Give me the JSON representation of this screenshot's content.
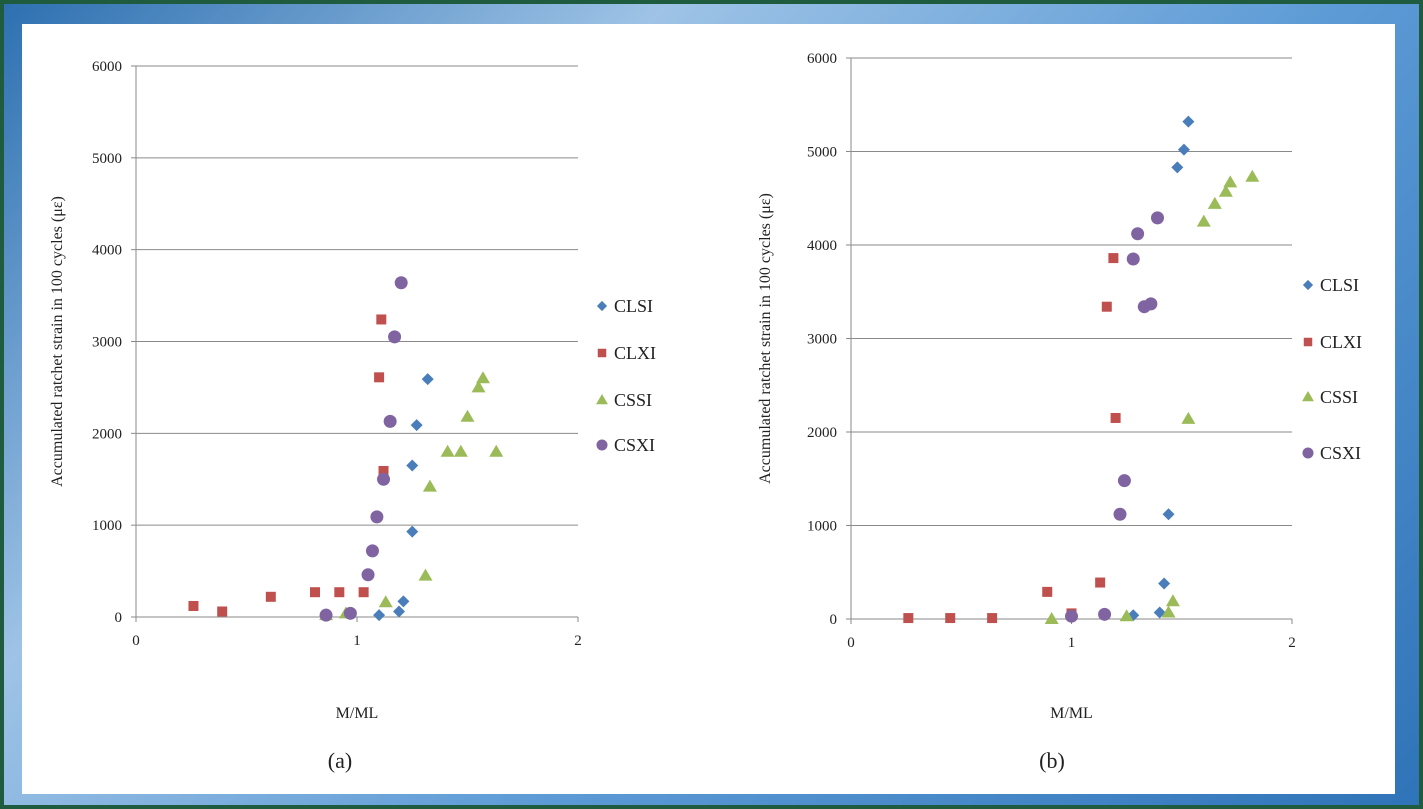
{
  "chart_data": [
    {
      "type": "scatter",
      "panel_label": "(a)",
      "xlabel": "M/ML",
      "ylabel": "Accumulated ratchet strain in 100 cycles (με)",
      "xlim": [
        0,
        2
      ],
      "ylim": [
        0,
        6000
      ],
      "x_ticks": [
        "0",
        "1",
        "2"
      ],
      "y_ticks": [
        "0",
        "1000",
        "2000",
        "3000",
        "4000",
        "5000",
        "6000"
      ],
      "grid": "horizontal",
      "legend_position": "right",
      "series": [
        {
          "name": "CLSI",
          "marker": "diamond",
          "color": "#4a7ebb",
          "points": [
            [
              1.1,
              20
            ],
            [
              1.19,
              60
            ],
            [
              1.21,
              170
            ],
            [
              1.25,
              930
            ],
            [
              1.25,
              1650
            ],
            [
              1.27,
              2090
            ],
            [
              1.32,
              2590
            ]
          ]
        },
        {
          "name": "CLXI",
          "marker": "square",
          "color": "#c0504d",
          "points": [
            [
              0.26,
              120
            ],
            [
              0.39,
              60
            ],
            [
              0.61,
              220
            ],
            [
              0.81,
              270
            ],
            [
              0.92,
              270
            ],
            [
              1.03,
              270
            ],
            [
              1.1,
              2610
            ],
            [
              1.11,
              3240
            ],
            [
              1.12,
              1590
            ]
          ]
        },
        {
          "name": "CSSI",
          "marker": "triangle",
          "color": "#9bbb59",
          "points": [
            [
              0.86,
              20
            ],
            [
              0.95,
              40
            ],
            [
              1.13,
              160
            ],
            [
              1.31,
              450
            ],
            [
              1.33,
              1420
            ],
            [
              1.41,
              1800
            ],
            [
              1.47,
              1800
            ],
            [
              1.5,
              2180
            ],
            [
              1.55,
              2500
            ],
            [
              1.57,
              2600
            ],
            [
              1.63,
              1800
            ]
          ]
        },
        {
          "name": "CSXI",
          "marker": "circle",
          "color": "#8064a2",
          "points": [
            [
              0.86,
              20
            ],
            [
              0.97,
              40
            ],
            [
              1.05,
              460
            ],
            [
              1.07,
              720
            ],
            [
              1.09,
              1090
            ],
            [
              1.12,
              1500
            ],
            [
              1.15,
              2130
            ],
            [
              1.17,
              3050
            ],
            [
              1.2,
              3640
            ]
          ]
        }
      ]
    },
    {
      "type": "scatter",
      "panel_label": "(b)",
      "xlabel": "M/ML",
      "ylabel": "Accumulated ratchet strain in 100 cycles (με)",
      "xlim": [
        0,
        2
      ],
      "ylim": [
        0,
        6000
      ],
      "x_ticks": [
        "0",
        "1",
        "2"
      ],
      "y_ticks": [
        "0",
        "1000",
        "2000",
        "3000",
        "4000",
        "5000",
        "6000"
      ],
      "grid": "horizontal",
      "legend_position": "right",
      "series": [
        {
          "name": "CLSI",
          "marker": "diamond",
          "color": "#4a7ebb",
          "points": [
            [
              1.0,
              20
            ],
            [
              1.28,
              40
            ],
            [
              1.4,
              70
            ],
            [
              1.42,
              380
            ],
            [
              1.44,
              1120
            ],
            [
              1.48,
              4830
            ],
            [
              1.51,
              5020
            ],
            [
              1.53,
              5320
            ]
          ]
        },
        {
          "name": "CLXI",
          "marker": "square",
          "color": "#c0504d",
          "points": [
            [
              0.26,
              10
            ],
            [
              0.45,
              10
            ],
            [
              0.64,
              10
            ],
            [
              0.89,
              290
            ],
            [
              1.0,
              60
            ],
            [
              1.13,
              390
            ],
            [
              1.16,
              3340
            ],
            [
              1.19,
              3860
            ],
            [
              1.2,
              2150
            ]
          ]
        },
        {
          "name": "CSSI",
          "marker": "triangle",
          "color": "#9bbb59",
          "points": [
            [
              0.91,
              0
            ],
            [
              1.25,
              30
            ],
            [
              1.44,
              70
            ],
            [
              1.46,
              190
            ],
            [
              1.53,
              2140
            ],
            [
              1.6,
              4250
            ],
            [
              1.65,
              4440
            ],
            [
              1.7,
              4570
            ],
            [
              1.72,
              4670
            ],
            [
              1.82,
              4730
            ]
          ]
        },
        {
          "name": "CSXI",
          "marker": "circle",
          "color": "#8064a2",
          "points": [
            [
              1.0,
              30
            ],
            [
              1.15,
              50
            ],
            [
              1.22,
              1120
            ],
            [
              1.24,
              1480
            ],
            [
              1.28,
              3850
            ],
            [
              1.3,
              4120
            ],
            [
              1.33,
              3340
            ],
            [
              1.36,
              3370
            ],
            [
              1.39,
              4290
            ]
          ]
        }
      ]
    }
  ]
}
